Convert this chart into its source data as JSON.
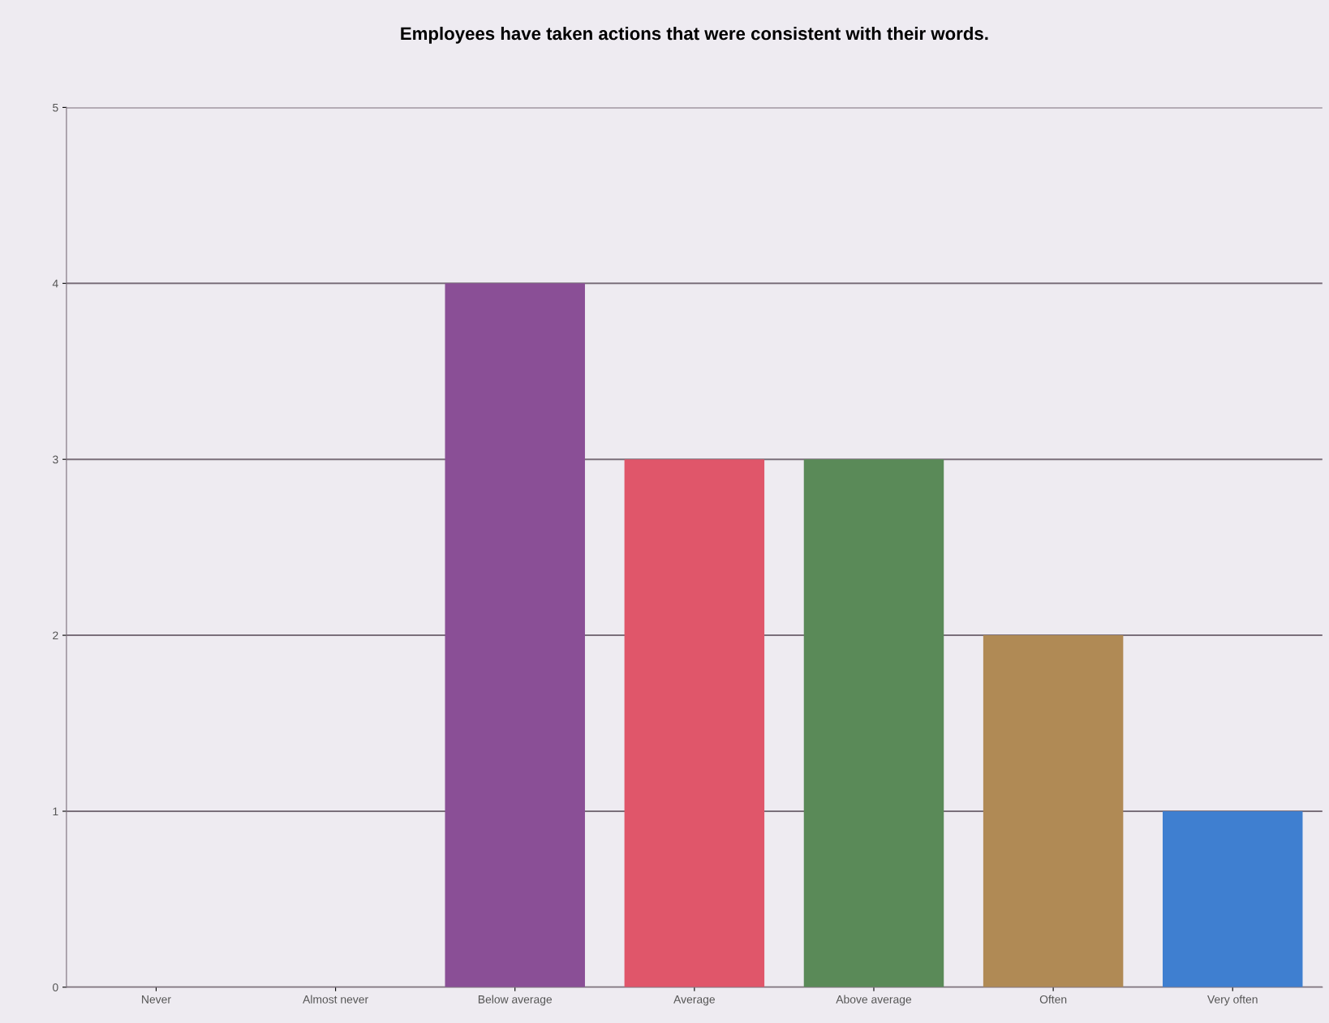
{
  "chart_data": {
    "type": "bar",
    "title": "Employees have taken actions that were consistent with their words.",
    "categories": [
      "Never",
      "Almost never",
      "Below average",
      "Average",
      "Above average",
      "Often",
      "Very often"
    ],
    "values": [
      0,
      0,
      4,
      3,
      3,
      2,
      1
    ],
    "colors": [
      "#8a4f96",
      "#8a4f96",
      "#8a4f96",
      "#e0566a",
      "#5a8a58",
      "#b08a55",
      "#3f7fd0"
    ],
    "ylim": [
      0,
      5
    ],
    "yticks": [
      0,
      1,
      2,
      3,
      4,
      5
    ],
    "grid": "y",
    "legend": false
  }
}
